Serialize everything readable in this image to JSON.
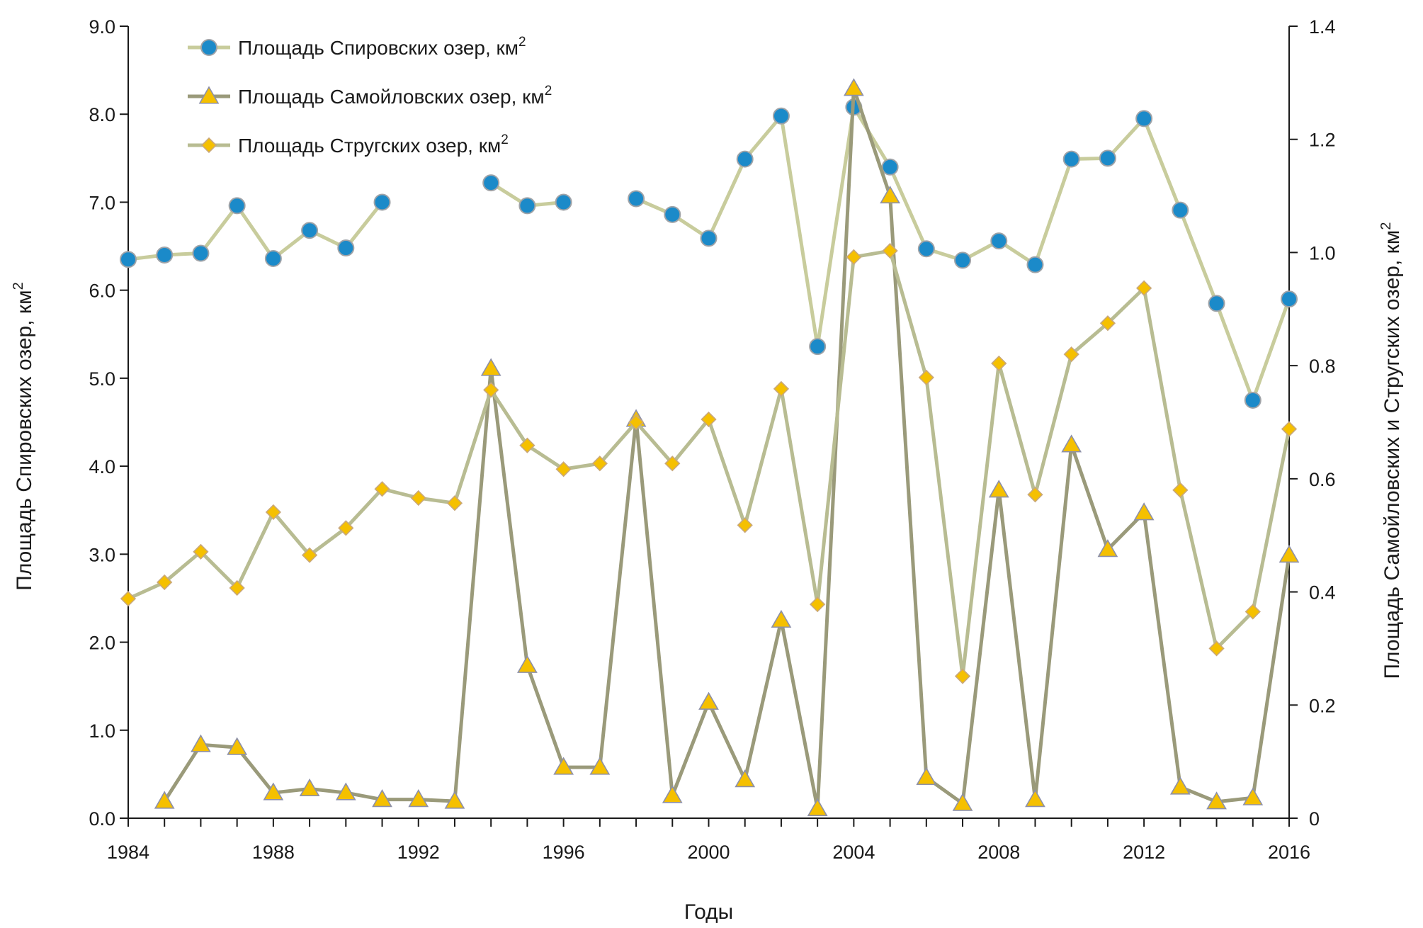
{
  "chart_data": {
    "type": "line",
    "xlabel": "Годы",
    "ylabel_left": "Площадь Спировских озер, км",
    "ylabel_left_sup": "2",
    "ylabel_right": "Площадь Самойловских и Стругских озер, км",
    "ylabel_right_sup": "2",
    "xlim": [
      1984,
      2016
    ],
    "ylim_left": [
      0,
      9
    ],
    "ylim_right": [
      0,
      1.4
    ],
    "x_ticks": [
      "1984",
      "1988",
      "1992",
      "1996",
      "2000",
      "2004",
      "2008",
      "2012",
      "2016"
    ],
    "y_left_ticks": [
      "0.0",
      "1.0",
      "2.0",
      "3.0",
      "4.0",
      "5.0",
      "6.0",
      "7.0",
      "8.0",
      "9.0"
    ],
    "y_right_ticks": [
      "0",
      "0.2",
      "0.4",
      "0.6",
      "0.8",
      "1.0",
      "1.2",
      "1.4"
    ],
    "grid": false,
    "legend_position": "top-left",
    "series": [
      {
        "name": "Площадь Спировских озер, км",
        "name_sup": "2",
        "axis": "left",
        "marker": "circle",
        "line_color": "#c8cc9c",
        "marker_color": "#1b8ac9",
        "x": [
          1984,
          1985,
          1986,
          1987,
          1988,
          1989,
          1990,
          1991,
          1994,
          1995,
          1996,
          1998,
          1999,
          2000,
          2001,
          2002,
          2003,
          2004,
          2005,
          2006,
          2007,
          2008,
          2009,
          2010,
          2011,
          2012,
          2013,
          2014,
          2015,
          2016
        ],
        "y": [
          6.35,
          6.4,
          6.42,
          6.96,
          6.36,
          6.68,
          6.48,
          7.0,
          7.22,
          6.96,
          7.0,
          7.04,
          6.86,
          6.59,
          7.49,
          7.98,
          5.36,
          8.08,
          7.4,
          6.47,
          6.34,
          6.56,
          6.29,
          7.49,
          7.5,
          7.95,
          6.91,
          5.85,
          4.75,
          5.9
        ],
        "segments": [
          [
            1984,
            1991
          ],
          [
            1994,
            1996
          ],
          [
            1998,
            2016
          ]
        ]
      },
      {
        "name": "Площадь Самойловских озер, км",
        "name_sup": "2",
        "axis": "right",
        "marker": "triangle",
        "line_color": "#9a9a7a",
        "marker_color": "#f5c000",
        "x": [
          1985,
          1986,
          1987,
          1988,
          1989,
          1990,
          1991,
          1992,
          1993,
          1994,
          1995,
          1996,
          1997,
          1998,
          1999,
          2000,
          2001,
          2002,
          2003,
          2004,
          2005,
          2006,
          2007,
          2008,
          2009,
          2010,
          2011,
          2012,
          2013,
          2014,
          2015,
          2016
        ],
        "y": [
          0.03,
          0.13,
          0.125,
          0.045,
          0.052,
          0.045,
          0.033,
          0.033,
          0.03,
          0.795,
          0.27,
          0.09,
          0.09,
          0.705,
          0.04,
          0.205,
          0.068,
          0.35,
          0.017,
          1.29,
          1.1,
          0.072,
          0.026,
          0.58,
          0.033,
          0.66,
          0.475,
          0.54,
          0.055,
          0.029,
          0.036,
          0.465
        ]
      },
      {
        "name": "Площадь Стругских озер, км",
        "name_sup": "2",
        "axis": "right",
        "marker": "diamond",
        "line_color": "#b8bc92",
        "marker_color": "#f5c000",
        "x": [
          1984,
          1985,
          1986,
          1987,
          1988,
          1989,
          1990,
          1991,
          1992,
          1993,
          1994,
          1995,
          1996,
          1997,
          1998,
          1999,
          2000,
          2001,
          2002,
          2003,
          2004,
          2005,
          2006,
          2007,
          2008,
          2009,
          2010,
          2011,
          2012,
          2013,
          2014,
          2015,
          2016
        ],
        "y": [
          0.388,
          0.417,
          0.471,
          0.407,
          0.541,
          0.465,
          0.513,
          0.582,
          0.566,
          0.557,
          0.757,
          0.659,
          0.617,
          0.627,
          0.7,
          0.627,
          0.705,
          0.518,
          0.759,
          0.378,
          0.992,
          1.003,
          0.779,
          0.251,
          0.804,
          0.572,
          0.82,
          0.875,
          0.937,
          0.58,
          0.3,
          0.365,
          0.688
        ]
      }
    ]
  }
}
